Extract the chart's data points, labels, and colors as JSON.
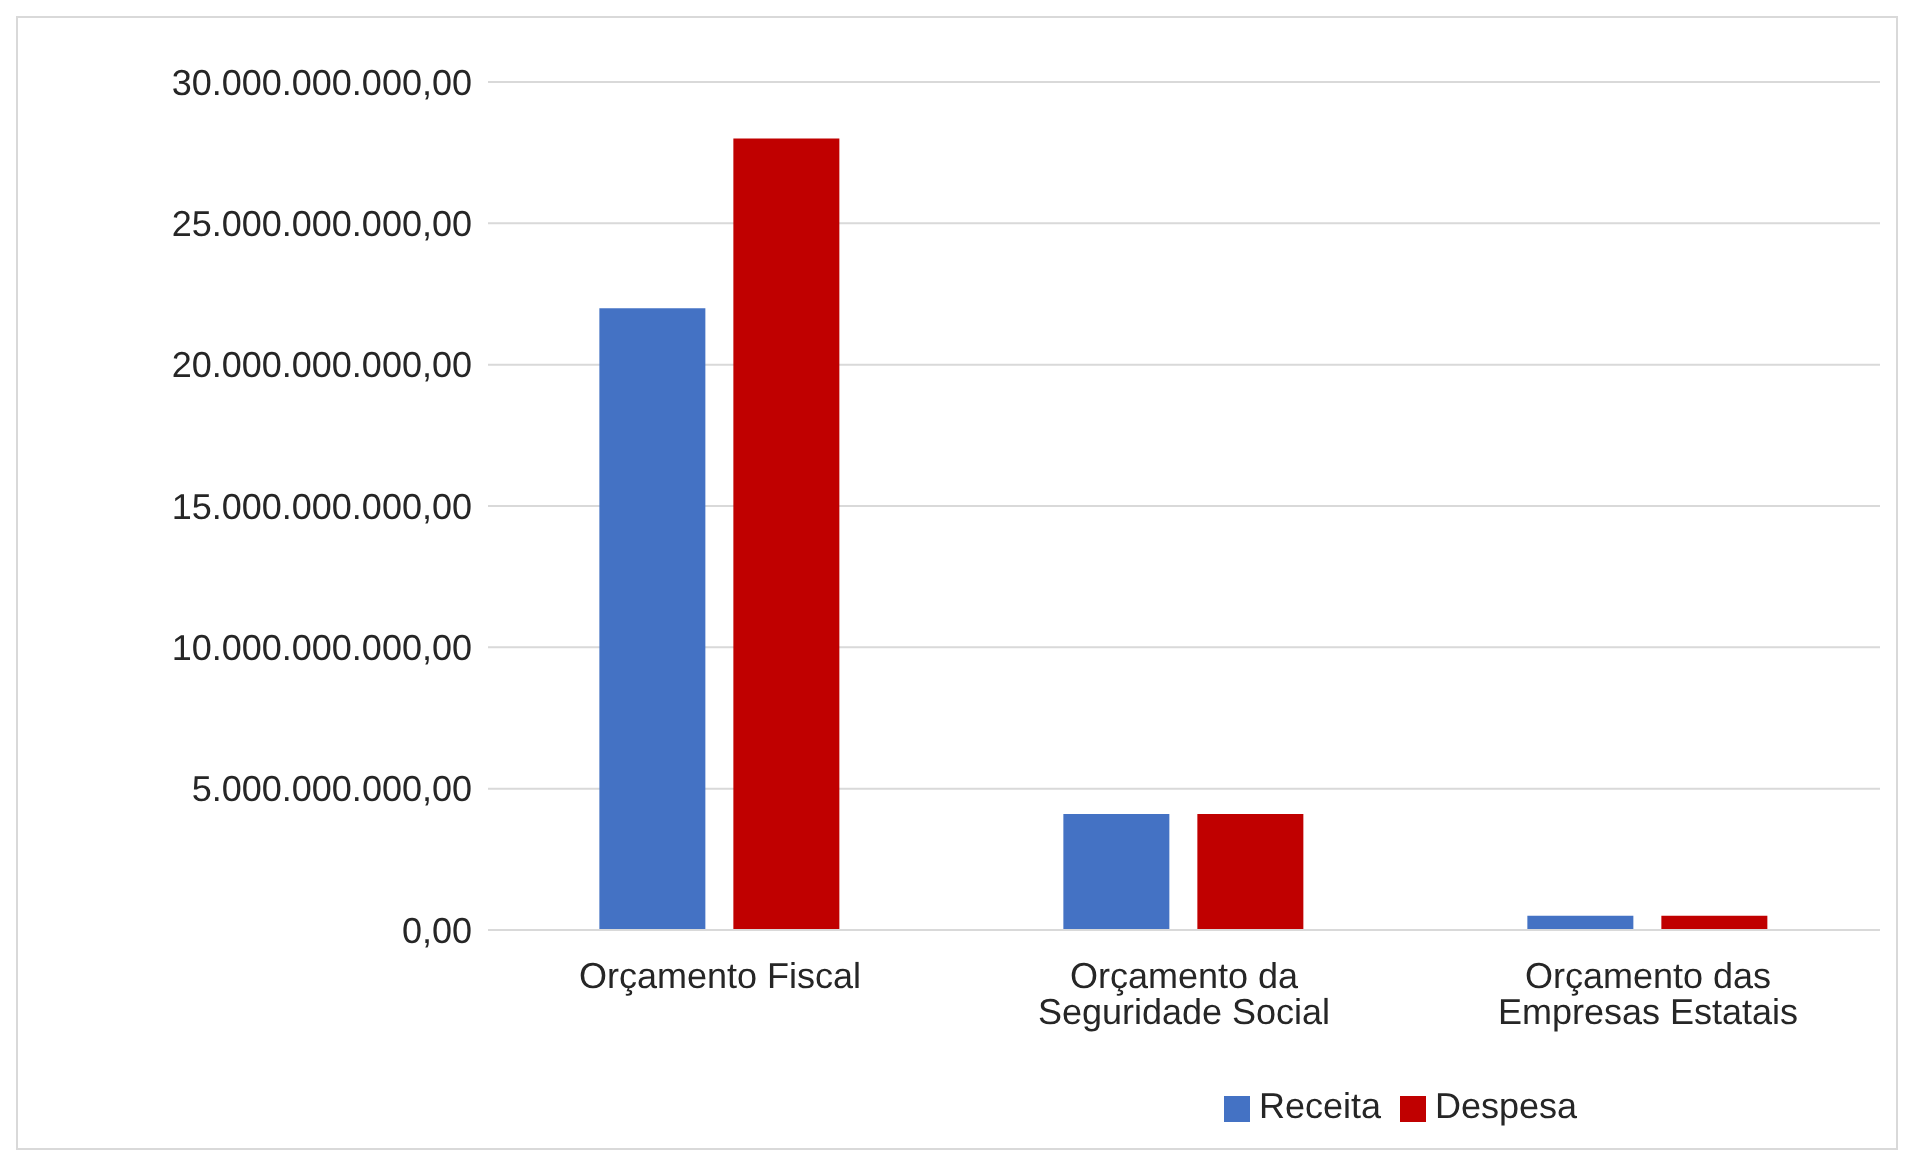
{
  "chart_data": {
    "type": "bar",
    "categories": [
      "Orçamento Fiscal",
      "Orçamento da Seguridade Social",
      "Orçamento das Empresas Estatais"
    ],
    "series": [
      {
        "name": "Receita",
        "color": "#4472c4",
        "values": [
          22000000000,
          4100000000,
          500000000
        ]
      },
      {
        "name": "Despesa",
        "color": "#c00000",
        "values": [
          28000000000,
          4100000000,
          500000000
        ]
      }
    ],
    "ylim": [
      0,
      30000000000
    ],
    "yticks": [
      {
        "value": 0,
        "label": "0,00"
      },
      {
        "value": 5000000000,
        "label": "5.000.000.000,00"
      },
      {
        "value": 10000000000,
        "label": "10.000.000.000,00"
      },
      {
        "value": 15000000000,
        "label": "15.000.000.000,00"
      },
      {
        "value": 20000000000,
        "label": "20.000.000.000,00"
      },
      {
        "value": 25000000000,
        "label": "25.000.000.000,00"
      },
      {
        "value": 30000000000,
        "label": "30.000.000.000,00"
      }
    ],
    "grid": "y",
    "legend": "bottom"
  }
}
